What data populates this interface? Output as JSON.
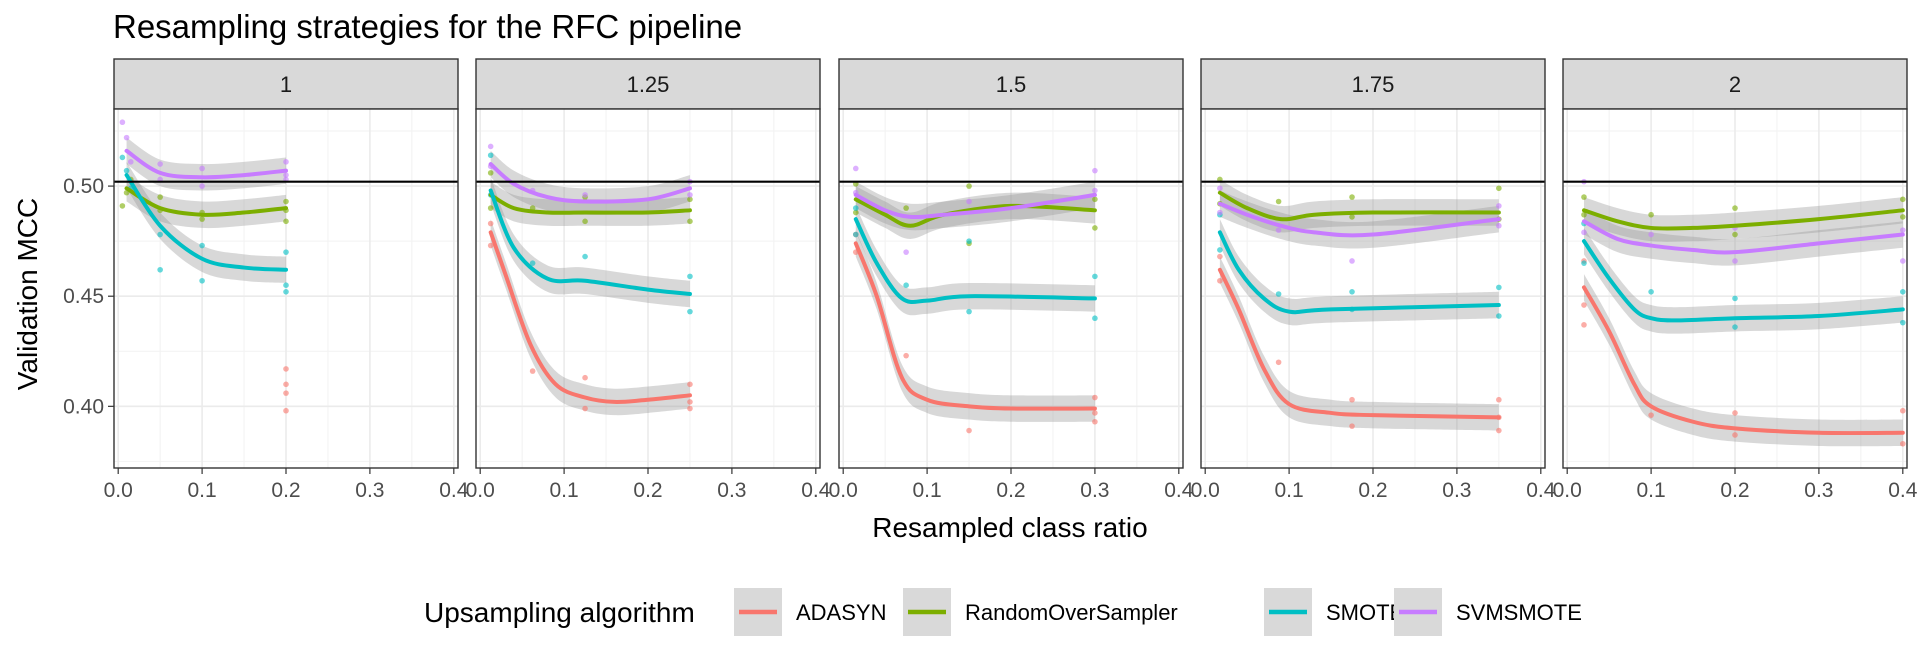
{
  "chart_data": {
    "type": "line",
    "title": "Resampling strategies for the RFC pipeline",
    "xlabel": "Resampled class ratio",
    "ylabel": "Validation MCC",
    "xlim": [
      -0.005,
      0.405
    ],
    "ylim": [
      0.372,
      0.535
    ],
    "x_ticks": [
      0.0,
      0.1,
      0.2,
      0.3,
      0.4
    ],
    "x_tick_labels": [
      "0.0",
      "0.1",
      "0.2",
      "0.3",
      "0.4"
    ],
    "y_ticks": [
      0.4,
      0.45,
      0.5
    ],
    "y_tick_labels": [
      "0.40",
      "0.45",
      "0.50"
    ],
    "reference_line": 0.502,
    "grid": true,
    "legend": {
      "title": "Upsampling algorithm",
      "position": "bottom"
    },
    "colors": {
      "ADASYN": "#F8766D",
      "RandomOverSampler": "#7CAE00",
      "SMOTE": "#00BFC4",
      "SVMSMOTE": "#C77CFF"
    },
    "series_names": [
      "ADASYN",
      "RandomOverSampler",
      "SMOTE",
      "SVMSMOTE"
    ],
    "facets": [
      {
        "label": "1",
        "series": [
          {
            "name": "ADASYN",
            "x": [],
            "y": []
          },
          {
            "name": "RandomOverSampler",
            "x": [
              0.01,
              0.05,
              0.1,
              0.15,
              0.2
            ],
            "y": [
              0.499,
              0.49,
              0.487,
              0.488,
              0.49
            ]
          },
          {
            "name": "SMOTE",
            "x": [
              0.01,
              0.05,
              0.1,
              0.15,
              0.2
            ],
            "y": [
              0.505,
              0.482,
              0.467,
              0.463,
              0.462
            ]
          },
          {
            "name": "SVMSMOTE",
            "x": [
              0.01,
              0.05,
              0.1,
              0.15,
              0.2
            ],
            "y": [
              0.516,
              0.506,
              0.504,
              0.505,
              0.507
            ]
          }
        ],
        "points": [
          {
            "name": "ADASYN",
            "x": [
              0.2,
              0.2,
              0.2,
              0.2
            ],
            "y": [
              0.417,
              0.41,
              0.406,
              0.398
            ]
          },
          {
            "name": "RandomOverSampler",
            "x": [
              0.005,
              0.01,
              0.015,
              0.05,
              0.05,
              0.1,
              0.1,
              0.2,
              0.2,
              0.2
            ],
            "y": [
              0.491,
              0.497,
              0.503,
              0.495,
              0.489,
              0.488,
              0.485,
              0.493,
              0.484,
              0.489
            ]
          },
          {
            "name": "SMOTE",
            "x": [
              0.005,
              0.01,
              0.015,
              0.05,
              0.05,
              0.1,
              0.1,
              0.2,
              0.2,
              0.2
            ],
            "y": [
              0.513,
              0.507,
              0.499,
              0.478,
              0.462,
              0.473,
              0.457,
              0.47,
              0.455,
              0.452
            ]
          },
          {
            "name": "SVMSMOTE",
            "x": [
              0.005,
              0.01,
              0.015,
              0.05,
              0.05,
              0.1,
              0.1,
              0.2,
              0.2,
              0.2
            ],
            "y": [
              0.529,
              0.522,
              0.511,
              0.51,
              0.503,
              0.508,
              0.5,
              0.511,
              0.505,
              0.503
            ]
          }
        ]
      },
      {
        "label": "1.25",
        "series": [
          {
            "name": "ADASYN",
            "x": [
              0.0125,
              0.03,
              0.06,
              0.09,
              0.125,
              0.16,
              0.2,
              0.25
            ],
            "y": [
              0.479,
              0.46,
              0.428,
              0.41,
              0.404,
              0.402,
              0.403,
              0.405
            ]
          },
          {
            "name": "RandomOverSampler",
            "x": [
              0.0125,
              0.04,
              0.08,
              0.125,
              0.2,
              0.25
            ],
            "y": [
              0.496,
              0.49,
              0.488,
              0.488,
              0.488,
              0.489
            ]
          },
          {
            "name": "SMOTE",
            "x": [
              0.0125,
              0.04,
              0.08,
              0.125,
              0.2,
              0.25
            ],
            "y": [
              0.498,
              0.472,
              0.458,
              0.457,
              0.453,
              0.451
            ]
          },
          {
            "name": "SVMSMOTE",
            "x": [
              0.0125,
              0.04,
              0.08,
              0.125,
              0.2,
              0.25
            ],
            "y": [
              0.51,
              0.501,
              0.495,
              0.493,
              0.494,
              0.499
            ]
          }
        ],
        "points": [
          {
            "name": "ADASYN",
            "x": [
              0.0125,
              0.0125,
              0.0625,
              0.125,
              0.125,
              0.25,
              0.25,
              0.25
            ],
            "y": [
              0.473,
              0.483,
              0.416,
              0.413,
              0.399,
              0.41,
              0.402,
              0.399
            ]
          },
          {
            "name": "RandomOverSampler",
            "x": [
              0.0125,
              0.0125,
              0.0625,
              0.125,
              0.125,
              0.25,
              0.25
            ],
            "y": [
              0.506,
              0.49,
              0.49,
              0.495,
              0.484,
              0.494,
              0.484
            ]
          },
          {
            "name": "SMOTE",
            "x": [
              0.0125,
              0.0125,
              0.0625,
              0.125,
              0.25,
              0.25
            ],
            "y": [
              0.514,
              0.496,
              0.465,
              0.468,
              0.459,
              0.443
            ]
          },
          {
            "name": "SVMSMOTE",
            "x": [
              0.0125,
              0.0125,
              0.0625,
              0.125,
              0.25,
              0.25
            ],
            "y": [
              0.518,
              0.509,
              0.498,
              0.496,
              0.502,
              0.496
            ]
          }
        ]
      },
      {
        "label": "1.5",
        "series": [
          {
            "name": "ADASYN",
            "x": [
              0.015,
              0.04,
              0.07,
              0.1,
              0.15,
              0.2,
              0.3
            ],
            "y": [
              0.474,
              0.45,
              0.413,
              0.403,
              0.4,
              0.399,
              0.399
            ]
          },
          {
            "name": "RandomOverSampler",
            "x": [
              0.015,
              0.05,
              0.08,
              0.12,
              0.2,
              0.3
            ],
            "y": [
              0.494,
              0.487,
              0.482,
              0.487,
              0.491,
              0.489
            ]
          },
          {
            "name": "SMOTE",
            "x": [
              0.015,
              0.04,
              0.07,
              0.1,
              0.15,
              0.3
            ],
            "y": [
              0.485,
              0.465,
              0.449,
              0.448,
              0.45,
              0.449
            ]
          },
          {
            "name": "SVMSMOTE",
            "x": [
              0.015,
              0.05,
              0.08,
              0.12,
              0.2,
              0.3
            ],
            "y": [
              0.496,
              0.489,
              0.486,
              0.487,
              0.49,
              0.496
            ]
          }
        ],
        "points": [
          {
            "name": "ADASYN",
            "x": [
              0.015,
              0.015,
              0.075,
              0.15,
              0.3,
              0.3,
              0.3
            ],
            "y": [
              0.47,
              0.478,
              0.423,
              0.389,
              0.404,
              0.397,
              0.393
            ]
          },
          {
            "name": "RandomOverSampler",
            "x": [
              0.015,
              0.015,
              0.075,
              0.15,
              0.15,
              0.3,
              0.3
            ],
            "y": [
              0.501,
              0.488,
              0.49,
              0.5,
              0.474,
              0.494,
              0.481
            ]
          },
          {
            "name": "SMOTE",
            "x": [
              0.015,
              0.015,
              0.075,
              0.15,
              0.15,
              0.3,
              0.3
            ],
            "y": [
              0.49,
              0.478,
              0.455,
              0.475,
              0.443,
              0.459,
              0.44
            ]
          },
          {
            "name": "SVMSMOTE",
            "x": [
              0.015,
              0.015,
              0.075,
              0.15,
              0.3,
              0.3
            ],
            "y": [
              0.508,
              0.497,
              0.47,
              0.493,
              0.507,
              0.498
            ]
          }
        ]
      },
      {
        "label": "1.75",
        "series": [
          {
            "name": "ADASYN",
            "x": [
              0.0175,
              0.04,
              0.07,
              0.1,
              0.15,
              0.2,
              0.35
            ],
            "y": [
              0.462,
              0.444,
              0.417,
              0.401,
              0.397,
              0.396,
              0.395
            ]
          },
          {
            "name": "RandomOverSampler",
            "x": [
              0.0175,
              0.05,
              0.09,
              0.13,
              0.2,
              0.35
            ],
            "y": [
              0.497,
              0.49,
              0.485,
              0.487,
              0.488,
              0.488
            ]
          },
          {
            "name": "SMOTE",
            "x": [
              0.0175,
              0.04,
              0.07,
              0.1,
              0.15,
              0.35
            ],
            "y": [
              0.479,
              0.462,
              0.449,
              0.443,
              0.444,
              0.446
            ]
          },
          {
            "name": "SVMSMOTE",
            "x": [
              0.0175,
              0.05,
              0.09,
              0.13,
              0.2,
              0.35
            ],
            "y": [
              0.492,
              0.487,
              0.482,
              0.479,
              0.478,
              0.485
            ]
          }
        ],
        "points": [
          {
            "name": "ADASYN",
            "x": [
              0.0175,
              0.0175,
              0.0875,
              0.175,
              0.175,
              0.35,
              0.35,
              0.35
            ],
            "y": [
              0.457,
              0.468,
              0.42,
              0.403,
              0.391,
              0.403,
              0.395,
              0.389
            ]
          },
          {
            "name": "RandomOverSampler",
            "x": [
              0.0175,
              0.0175,
              0.0875,
              0.175,
              0.175,
              0.35,
              0.35
            ],
            "y": [
              0.503,
              0.492,
              0.493,
              0.495,
              0.486,
              0.499,
              0.485
            ]
          },
          {
            "name": "SMOTE",
            "x": [
              0.0175,
              0.0175,
              0.0875,
              0.175,
              0.175,
              0.35,
              0.35
            ],
            "y": [
              0.487,
              0.471,
              0.451,
              0.452,
              0.444,
              0.454,
              0.441
            ]
          },
          {
            "name": "SVMSMOTE",
            "x": [
              0.0175,
              0.0175,
              0.0875,
              0.175,
              0.35,
              0.35
            ],
            "y": [
              0.499,
              0.488,
              0.48,
              0.466,
              0.491,
              0.482
            ]
          }
        ]
      },
      {
        "label": "2",
        "series": [
          {
            "name": "ADASYN",
            "x": [
              0.02,
              0.05,
              0.08,
              0.1,
              0.15,
              0.2,
              0.3,
              0.4
            ],
            "y": [
              0.454,
              0.434,
              0.41,
              0.4,
              0.393,
              0.39,
              0.388,
              0.388
            ]
          },
          {
            "name": "RandomOverSampler",
            "x": [
              0.02,
              0.06,
              0.1,
              0.15,
              0.2,
              0.3,
              0.4
            ],
            "y": [
              0.489,
              0.484,
              0.481,
              0.481,
              0.482,
              0.485,
              0.489
            ]
          },
          {
            "name": "SMOTE",
            "x": [
              0.02,
              0.05,
              0.08,
              0.1,
              0.13,
              0.2,
              0.3,
              0.4
            ],
            "y": [
              0.475,
              0.458,
              0.444,
              0.44,
              0.439,
              0.44,
              0.441,
              0.444
            ]
          },
          {
            "name": "SVMSMOTE",
            "x": [
              0.02,
              0.06,
              0.1,
              0.15,
              0.2,
              0.3,
              0.4
            ],
            "y": [
              0.484,
              0.476,
              0.473,
              0.471,
              0.47,
              0.474,
              0.478
            ]
          }
        ],
        "points": [
          {
            "name": "ADASYN",
            "x": [
              0.02,
              0.02,
              0.02,
              0.1,
              0.2,
              0.2,
              0.4,
              0.4
            ],
            "y": [
              0.437,
              0.446,
              0.466,
              0.396,
              0.397,
              0.387,
              0.398,
              0.383
            ]
          },
          {
            "name": "RandomOverSampler",
            "x": [
              0.02,
              0.02,
              0.1,
              0.2,
              0.2,
              0.4,
              0.4
            ],
            "y": [
              0.495,
              0.487,
              0.487,
              0.49,
              0.478,
              0.494,
              0.486
            ]
          },
          {
            "name": "SMOTE",
            "x": [
              0.02,
              0.02,
              0.1,
              0.2,
              0.2,
              0.4,
              0.4
            ],
            "y": [
              0.483,
              0.465,
              0.452,
              0.449,
              0.436,
              0.452,
              0.438
            ]
          },
          {
            "name": "SVMSMOTE",
            "x": [
              0.02,
              0.02,
              0.1,
              0.2,
              0.2,
              0.4,
              0.4
            ],
            "y": [
              0.502,
              0.479,
              0.478,
              0.481,
              0.466,
              0.48,
              0.466
            ]
          }
        ]
      }
    ]
  }
}
